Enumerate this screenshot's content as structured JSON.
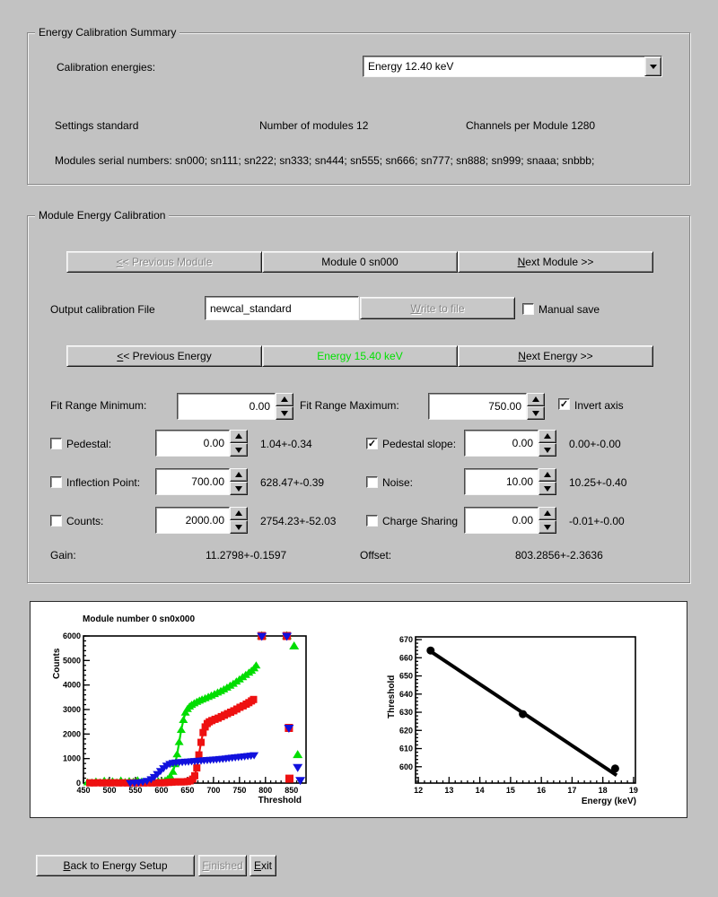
{
  "summary": {
    "title": "Energy Calibration Summary",
    "calibration_energies_label": "Calibration energies:",
    "energy_dropdown_value": "Energy 12.40 keV",
    "settings": "Settings standard",
    "num_modules": "Number of modules 12",
    "channels": "Channels per Module 1280",
    "serials": "Modules serial numbers: sn000; sn111; sn222; sn333; sn444; sn555; sn666; sn777; sn888; sn999; snaaa; snbbb;"
  },
  "module_cal": {
    "title": "Module Energy Calibration",
    "prev_module": "<< Previous Module",
    "module_label": "Module 0 sn000",
    "next_module": "Next Module >>",
    "output_file_label": "Output calibration File",
    "output_file_value": "newcal_standard",
    "write_to_file": "Write to file",
    "manual_save_label": "Manual save",
    "manual_save_checked": false,
    "prev_energy": "<< Previous Energy",
    "energy_label": "Energy 15.40 keV",
    "energy_color": "#00e100",
    "next_energy": "Next Energy >>",
    "fit_min_label": "Fit Range Minimum:",
    "fit_min_value": "0.00",
    "fit_max_label": "Fit Range Maximum:",
    "fit_max_value": "750.00",
    "invert_axis_label": "Invert axis",
    "invert_axis_checked": true,
    "params": [
      {
        "label": "Pedestal:",
        "checked": false,
        "value": "0.00",
        "fit": "1.04+-0.34"
      },
      {
        "label": "Pedestal slope:",
        "checked": true,
        "value": "0.00",
        "fit": "0.00+-0.00"
      },
      {
        "label": "Inflection Point:",
        "checked": false,
        "value": "700.00",
        "fit": "628.47+-0.39"
      },
      {
        "label": "Noise:",
        "checked": false,
        "value": "10.00",
        "fit": "10.25+-0.40"
      },
      {
        "label": "Counts:",
        "checked": false,
        "value": "2000.00",
        "fit": "2754.23+-52.03"
      },
      {
        "label": "Charge Sharing",
        "checked": false,
        "value": "0.00",
        "fit": "-0.01+-0.00"
      }
    ],
    "gain_label": "Gain:",
    "gain_value": "11.2798+-0.1597",
    "offset_label": "Offset:",
    "offset_value": "803.2856+-2.3636"
  },
  "footer": {
    "back": "Back to Energy Setup",
    "finished": "Finished",
    "exit": "Exit"
  },
  "chart_data": [
    {
      "type": "scatter",
      "title": "Module number 0 sn0x000",
      "xlabel": "Threshold",
      "ylabel": "Counts",
      "xlim": [
        450,
        878
      ],
      "ylim": [
        0,
        6000
      ],
      "xticks": [
        450,
        500,
        550,
        600,
        650,
        700,
        750,
        800,
        850
      ],
      "yticks": [
        0,
        1000,
        2000,
        3000,
        4000,
        5000,
        6000
      ],
      "xminor": 10,
      "yminor": 200,
      "frame": [
        57,
        36,
        305,
        200
      ],
      "grid": false,
      "legend": "none",
      "series": [
        {
          "name": "scurve-green",
          "color": "#00dd00",
          "marker": "triangle-up",
          "msize": 4,
          "line": true,
          "linewidth": 2.2,
          "points": [
            [
              458,
              20
            ],
            [
              466,
              10
            ],
            [
              474,
              50
            ],
            [
              482,
              15
            ],
            [
              490,
              80
            ],
            [
              498,
              25
            ],
            [
              506,
              60
            ],
            [
              514,
              20
            ],
            [
              522,
              90
            ],
            [
              530,
              30
            ],
            [
              538,
              70
            ],
            [
              546,
              40
            ],
            [
              554,
              100
            ],
            [
              562,
              50
            ],
            [
              570,
              30
            ],
            [
              578,
              80
            ],
            [
              586,
              40
            ],
            [
              594,
              60
            ],
            [
              601,
              55
            ],
            [
              607,
              90
            ],
            [
              612,
              150
            ],
            [
              617,
              260
            ],
            [
              622,
              450
            ],
            [
              626,
              760
            ],
            [
              630,
              1160
            ],
            [
              634,
              1660
            ],
            [
              638,
              2160
            ],
            [
              642,
              2560
            ],
            [
              646,
              2860
            ],
            [
              650,
              3010
            ],
            [
              654,
              3110
            ],
            [
              658,
              3180
            ],
            [
              663,
              3240
            ],
            [
              668,
              3300
            ],
            [
              673,
              3350
            ],
            [
              678,
              3400
            ],
            [
              684,
              3450
            ],
            [
              690,
              3500
            ],
            [
              696,
              3560
            ],
            [
              702,
              3620
            ],
            [
              708,
              3680
            ],
            [
              714,
              3740
            ],
            [
              720,
              3810
            ],
            [
              726,
              3880
            ],
            [
              732,
              3960
            ],
            [
              738,
              4040
            ],
            [
              744,
              4130
            ],
            [
              750,
              4220
            ],
            [
              756,
              4310
            ],
            [
              762,
              4400
            ],
            [
              768,
              4490
            ],
            [
              773,
              4570
            ],
            [
              778,
              4670
            ],
            [
              782,
              4780
            ]
          ]
        },
        {
          "name": "scurve-green-overflow",
          "color": "#00dd00",
          "marker": "triangle-up",
          "msize": 4.5,
          "line": false,
          "points": [
            [
              793,
              6000
            ],
            [
              841,
              6000
            ],
            [
              855,
              5580
            ],
            [
              862,
              1150
            ]
          ]
        },
        {
          "name": "scurve-red",
          "color": "#ee1111",
          "marker": "square",
          "msize": 4,
          "line": true,
          "linewidth": 2.2,
          "points": [
            [
              462,
              10
            ],
            [
              470,
              6
            ],
            [
              478,
              14
            ],
            [
              486,
              8
            ],
            [
              494,
              12
            ],
            [
              502,
              6
            ],
            [
              510,
              14
            ],
            [
              518,
              8
            ],
            [
              526,
              12
            ],
            [
              534,
              8
            ],
            [
              542,
              10
            ],
            [
              550,
              8
            ],
            [
              558,
              12
            ],
            [
              566,
              8
            ],
            [
              574,
              10
            ],
            [
              582,
              8
            ],
            [
              590,
              12
            ],
            [
              598,
              10
            ],
            [
              606,
              16
            ],
            [
              614,
              30
            ],
            [
              620,
              42
            ],
            [
              626,
              46
            ],
            [
              632,
              50
            ],
            [
              638,
              46
            ],
            [
              644,
              52
            ],
            [
              650,
              62
            ],
            [
              655,
              92
            ],
            [
              660,
              160
            ],
            [
              664,
              300
            ],
            [
              668,
              620
            ],
            [
              672,
              1150
            ],
            [
              676,
              1660
            ],
            [
              680,
              2060
            ],
            [
              684,
              2290
            ],
            [
              688,
              2430
            ],
            [
              692,
              2500
            ],
            [
              697,
              2550
            ],
            [
              703,
              2600
            ],
            [
              709,
              2650
            ],
            [
              715,
              2710
            ],
            [
              721,
              2770
            ],
            [
              727,
              2830
            ],
            [
              733,
              2890
            ],
            [
              739,
              2950
            ],
            [
              745,
              3020
            ],
            [
              751,
              3090
            ],
            [
              757,
              3150
            ],
            [
              763,
              3220
            ],
            [
              768,
              3280
            ],
            [
              773,
              3350
            ],
            [
              777,
              3410
            ]
          ]
        },
        {
          "name": "scurve-red-overflow",
          "color": "#ee1111",
          "marker": "square",
          "msize": 4.5,
          "line": false,
          "points": [
            [
              793,
              6000
            ],
            [
              841,
              6000
            ],
            [
              845,
              2250
            ],
            [
              846,
              180
            ]
          ]
        },
        {
          "name": "scurve-blue",
          "color": "#1111dd",
          "marker": "triangle-down",
          "msize": 4,
          "line": true,
          "linewidth": 2.2,
          "points": [
            [
              540,
              15
            ],
            [
              548,
              25
            ],
            [
              556,
              38
            ],
            [
              564,
              60
            ],
            [
              572,
              100
            ],
            [
              580,
              170
            ],
            [
              586,
              260
            ],
            [
              592,
              380
            ],
            [
              598,
              500
            ],
            [
              604,
              620
            ],
            [
              610,
              720
            ],
            [
              616,
              790
            ],
            [
              622,
              830
            ],
            [
              628,
              850
            ],
            [
              634,
              862
            ],
            [
              640,
              872
            ],
            [
              646,
              882
            ],
            [
              652,
              890
            ],
            [
              658,
              900
            ],
            [
              664,
              910
            ],
            [
              670,
              920
            ],
            [
              676,
              930
            ],
            [
              682,
              940
            ],
            [
              688,
              950
            ],
            [
              694,
              960
            ],
            [
              700,
              970
            ],
            [
              706,
              980
            ],
            [
              712,
              990
            ],
            [
              718,
              1002
            ],
            [
              724,
              1016
            ],
            [
              730,
              1030
            ],
            [
              736,
              1046
            ],
            [
              742,
              1060
            ],
            [
              748,
              1076
            ],
            [
              754,
              1090
            ],
            [
              760,
              1102
            ],
            [
              766,
              1116
            ],
            [
              772,
              1132
            ],
            [
              778,
              1148
            ]
          ]
        },
        {
          "name": "scurve-blue-overflow",
          "color": "#1111dd",
          "marker": "triangle-down",
          "msize": 4.5,
          "line": false,
          "points": [
            [
              793,
              6000
            ],
            [
              841,
              6000
            ],
            [
              845,
              2250
            ],
            [
              862,
              650
            ],
            [
              867,
              120
            ]
          ]
        }
      ]
    },
    {
      "type": "scatter",
      "title": "",
      "xlabel": "Energy (keV)",
      "ylabel": "Threshold",
      "xlim": [
        11.91,
        19.06
      ],
      "ylim": [
        591,
        671.5
      ],
      "xticks": [
        12,
        13,
        14,
        15,
        16,
        17,
        18,
        19
      ],
      "yticks": [
        600,
        610,
        620,
        630,
        640,
        650,
        660,
        670
      ],
      "xminor": 0.2,
      "yminor": 2,
      "frame": [
        42,
        37,
        287,
        200
      ],
      "grid": false,
      "legend": "none",
      "series": [
        {
          "name": "calibration-fit-line",
          "color": "#000000",
          "marker": "none",
          "line": true,
          "linewidth": 4,
          "points": [
            [
              12.4,
              663.5
            ],
            [
              18.45,
              595.3
            ]
          ]
        },
        {
          "name": "calibration-points",
          "color": "#000000",
          "marker": "circle",
          "msize": 4.5,
          "line": false,
          "points": [
            [
              12.4,
              664
            ],
            [
              15.4,
              629
            ],
            [
              18.4,
              599
            ]
          ]
        }
      ]
    }
  ]
}
